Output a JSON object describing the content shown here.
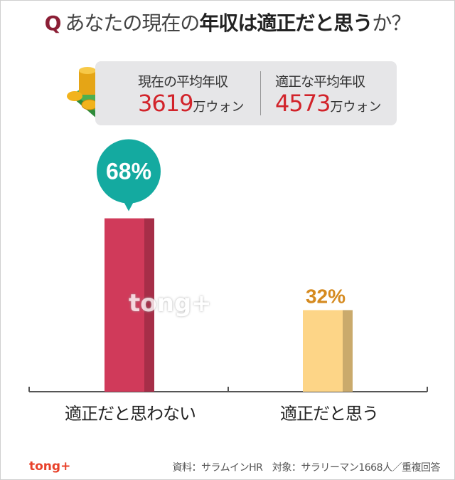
{
  "title": {
    "q": "Q",
    "pre": "あなたの現在の",
    "bold": "年収は適正だと思う",
    "post": "か？"
  },
  "summary": [
    {
      "label": "現在の平均年収",
      "value": "3619",
      "unit": "万ウォン"
    },
    {
      "label": "適正な平均年収",
      "value": "4573",
      "unit": "万ウォン"
    }
  ],
  "icons": {
    "money": "money-stack-icon"
  },
  "chart_data": {
    "type": "bar",
    "categories": [
      "適正だと思わない",
      "適正だと思う"
    ],
    "values": [
      68,
      32
    ],
    "data_labels": [
      "68%",
      "32%"
    ],
    "colors": [
      "#d03a5a",
      "#fdd587"
    ],
    "label_colors": [
      "#ffffff",
      "#d58a1f"
    ],
    "ylim": [
      0,
      70
    ],
    "grid": false
  },
  "watermark": "tong+",
  "logo": "tong+",
  "source": "資料：サラムインHR　対象：サラリーマン1668人／重複回答"
}
